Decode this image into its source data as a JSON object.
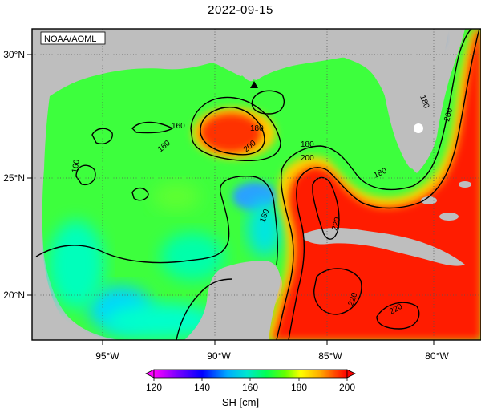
{
  "title": "2022-09-15",
  "attribution": "NOAA/AOML",
  "lat_labels": [
    "30°N",
    "25°N",
    "20°N"
  ],
  "lon_labels": [
    "95°W",
    "90°W",
    "85°W",
    "80°W"
  ],
  "contour_labels": [
    "160",
    "160",
    "160",
    "160",
    "180",
    "180",
    "180",
    "200",
    "200",
    "200",
    "220",
    "220",
    "220",
    "180"
  ],
  "colorbar": {
    "ticks": [
      "120",
      "140",
      "160",
      "180",
      "200"
    ],
    "label": "SH [cm]",
    "range": [
      120,
      200
    ],
    "colors": [
      "#ff00ff",
      "#8800ff",
      "#0000ff",
      "#00aaff",
      "#00ffff",
      "#00ff66",
      "#66ff00",
      "#ffff00",
      "#ffaa00",
      "#ff5500",
      "#ff0000"
    ]
  },
  "colors": {
    "land": "#bebebe",
    "background": "#ffffff",
    "contour": "#000000",
    "grid": "#555555"
  },
  "marker": "triangle"
}
